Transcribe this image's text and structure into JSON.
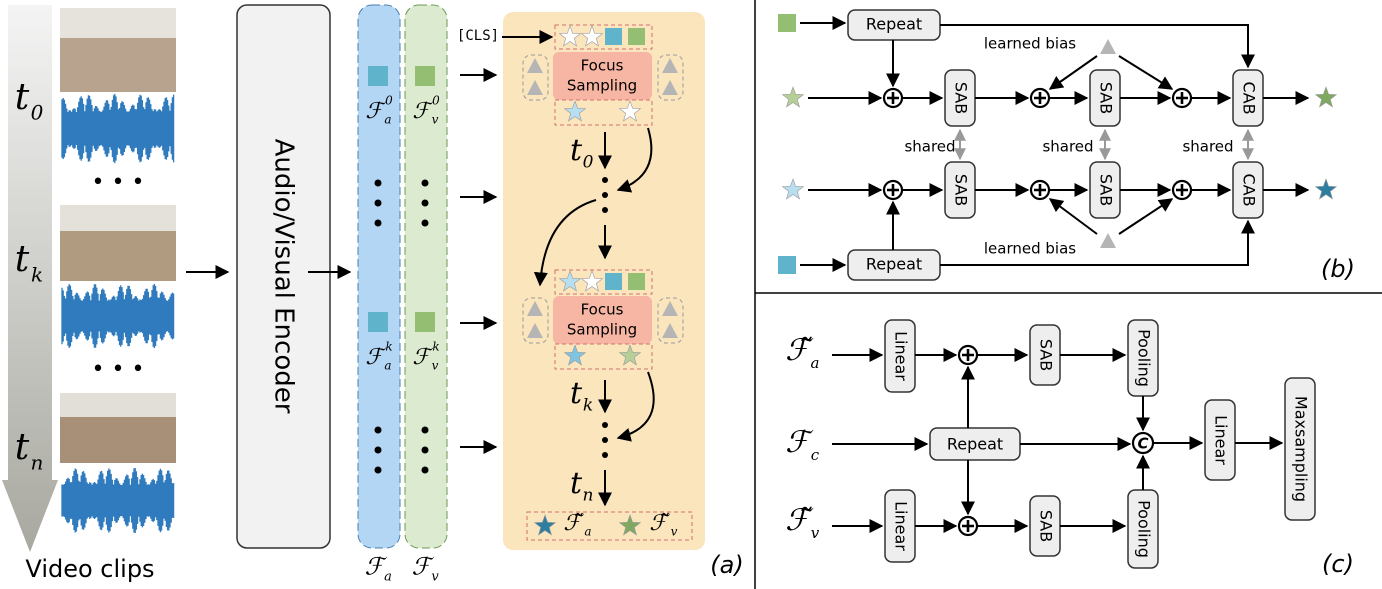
{
  "panel_a": {
    "time_labels": [
      {
        "t": "t",
        "sub": "0"
      },
      {
        "t": "t",
        "sub": "k"
      },
      {
        "t": "t",
        "sub": "n"
      }
    ],
    "caption": "Video clips",
    "encoder": "Audio/Visual Encoder",
    "feature_labels": [
      {
        "f": "ℱ",
        "sub": "a",
        "sup": "0"
      },
      {
        "f": "ℱ",
        "sub": "v",
        "sup": "0"
      },
      {
        "f": "ℱ",
        "sub": "a",
        "sup": "k"
      },
      {
        "f": "ℱ",
        "sub": "v",
        "sup": "k"
      }
    ],
    "column_labels": [
      {
        "f": "ℱ",
        "sub": "a"
      },
      {
        "f": "ℱ",
        "sub": "v"
      }
    ],
    "cls": "[CLS]",
    "focus_sampling": [
      {
        "lines": [
          "Focus",
          "Sampling"
        ]
      },
      {
        "lines": [
          "Focus",
          "Sampling"
        ]
      }
    ],
    "steps": [
      {
        "t": "t",
        "sub": "0"
      },
      {
        "t": "t",
        "sub": "k"
      },
      {
        "t": "t",
        "sub": "n"
      }
    ],
    "outputs": [
      {
        "f": "ℱ̃",
        "sub": "a"
      },
      {
        "f": "ℱ̃",
        "sub": "v"
      }
    ],
    "label": "(a)"
  },
  "panel_b": {
    "repeat": [
      "Repeat",
      "Repeat"
    ],
    "learned_bias": [
      "learned bias",
      "learned bias"
    ],
    "sab": [
      "SAB",
      "SAB",
      "SAB",
      "SAB"
    ],
    "cab": [
      "CAB",
      "CAB"
    ],
    "shared": [
      "shared",
      "shared",
      "shared"
    ],
    "label": "(b)"
  },
  "panel_c": {
    "inputs": [
      {
        "f": "ℱ̃",
        "sub": "a"
      },
      {
        "f": "ℱ",
        "sub": "c"
      },
      {
        "f": "ℱ̃",
        "sub": "v"
      }
    ],
    "linear": [
      "Linear",
      "Linear",
      "Linear"
    ],
    "sab": [
      "SAB",
      "SAB"
    ],
    "pooling": [
      "Pooling",
      "Pooling"
    ],
    "repeat": "Repeat",
    "concat": "C",
    "maxsampling": "Maxsampling",
    "label": "(c)"
  }
}
